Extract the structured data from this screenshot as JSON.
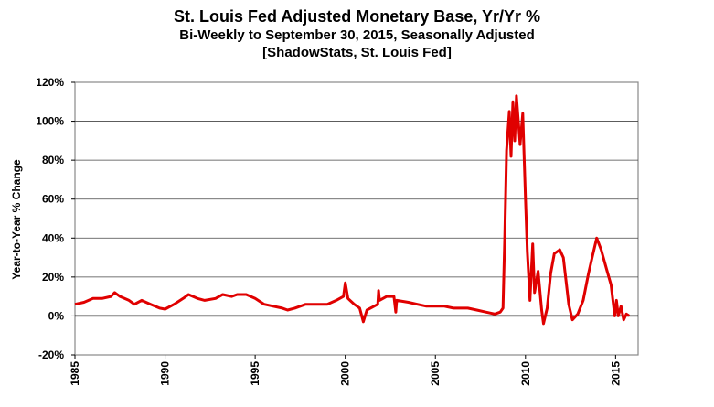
{
  "chart_data": {
    "type": "line",
    "title": "St. Louis Fed Adjusted Monetary Base, Yr/Yr %",
    "subtitle": "Bi-Weekly to September 30, 2015, Seasonally Adjusted",
    "source": "[ShadowStats, St. Louis Fed]",
    "xlabel": "",
    "ylabel": "Year-to-Year % Change",
    "xlim": [
      1985,
      2016.25
    ],
    "ylim": [
      -20,
      120
    ],
    "x_ticks": [
      "1985",
      "1990",
      "1995",
      "2000",
      "2005",
      "2010",
      "2015"
    ],
    "y_ticks": [
      "-20%",
      "0%",
      "20%",
      "40%",
      "60%",
      "80%",
      "100%",
      "120%"
    ],
    "grid": true,
    "line_color": "#e00000",
    "series": [
      {
        "name": "Adjusted Monetary Base Yr/Yr %",
        "x": [
          1985.0,
          1985.5,
          1986.0,
          1986.5,
          1987.0,
          1987.2,
          1987.5,
          1988.0,
          1988.3,
          1988.7,
          1989.2,
          1989.7,
          1990.0,
          1990.5,
          1991.0,
          1991.3,
          1991.8,
          1992.2,
          1992.8,
          1993.2,
          1993.7,
          1994.0,
          1994.5,
          1995.0,
          1995.5,
          1996.0,
          1996.5,
          1996.8,
          1997.2,
          1997.8,
          1998.5,
          1999.0,
          1999.5,
          1999.9,
          2000.0,
          2000.15,
          2000.5,
          2000.8,
          2001.0,
          2001.2,
          2001.6,
          2001.8,
          2001.85,
          2001.9,
          2002.3,
          2002.7,
          2002.8,
          2002.85,
          2003.5,
          2004.0,
          2004.5,
          2005.0,
          2005.5,
          2006.0,
          2006.8,
          2007.3,
          2007.8,
          2008.3,
          2008.6,
          2008.75,
          2008.85,
          2008.95,
          2009.1,
          2009.2,
          2009.3,
          2009.4,
          2009.5,
          2009.7,
          2009.85,
          2010.0,
          2010.1,
          2010.25,
          2010.4,
          2010.5,
          2010.7,
          2010.9,
          2011.0,
          2011.2,
          2011.4,
          2011.6,
          2011.9,
          2012.1,
          2012.4,
          2012.6,
          2012.9,
          2013.2,
          2013.5,
          2013.7,
          2013.95,
          2014.2,
          2014.5,
          2014.75,
          2014.95,
          2015.05,
          2015.15,
          2015.3,
          2015.45,
          2015.6,
          2015.75
        ],
        "y": [
          6,
          7,
          9,
          9,
          10,
          12,
          10,
          8,
          6,
          8,
          6,
          4,
          3.5,
          6,
          9,
          11,
          9,
          8,
          9,
          11,
          10,
          11,
          11,
          9,
          6,
          5,
          4,
          3,
          4,
          6,
          6,
          6,
          8,
          10,
          17,
          9,
          6,
          4,
          -3,
          3,
          5,
          6,
          13,
          8,
          10,
          10,
          2,
          8,
          7,
          6,
          5,
          5,
          5,
          4,
          4,
          3,
          2,
          1,
          2,
          4,
          40,
          85,
          105,
          82,
          110,
          90,
          113,
          88,
          104,
          60,
          33,
          8,
          37,
          12,
          23,
          3,
          -4,
          4,
          22,
          32,
          34,
          30,
          6,
          -2,
          1,
          8,
          22,
          30,
          40,
          34,
          24,
          16,
          0,
          8,
          0,
          5,
          -2,
          1,
          0
        ]
      }
    ]
  }
}
